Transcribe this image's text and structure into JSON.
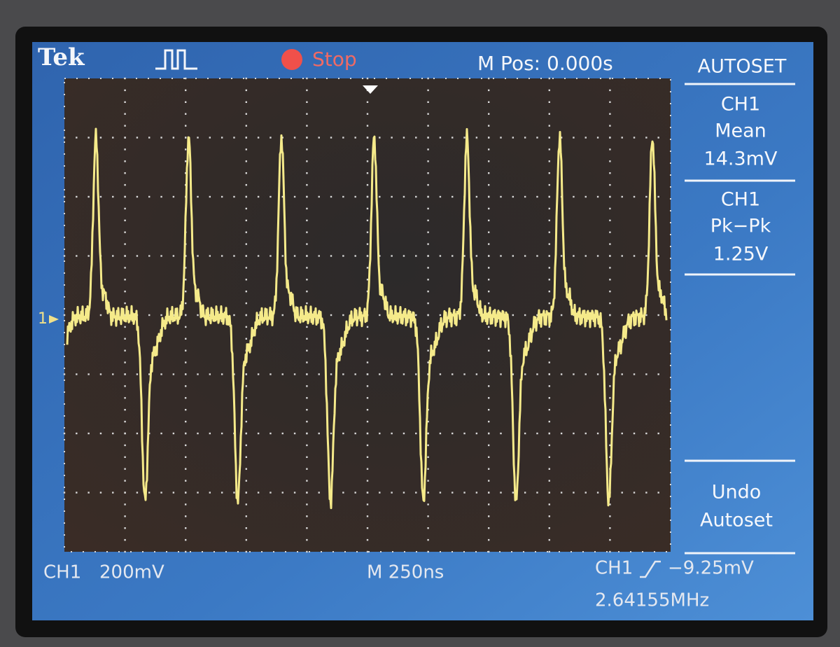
{
  "header": {
    "brand": "Tek",
    "status": "Stop",
    "position": "M Pos: 0.000s"
  },
  "menu": {
    "title": "AUTOSET",
    "items": [
      {
        "lines": [
          "CH1",
          "Mean",
          "14.3mV"
        ]
      },
      {
        "lines": [
          "CH1",
          "Pk−Pk",
          "1.25V"
        ]
      },
      {
        "lines": [
          "Undo",
          "Autoset"
        ]
      }
    ]
  },
  "footer": {
    "channel": "CH1",
    "scale": "200mV",
    "timebase": "M 250ns",
    "trigger_source": "CH1",
    "trigger_level": "−9.25mV",
    "frequency": "2.64155MHz"
  },
  "marker": "1"
}
